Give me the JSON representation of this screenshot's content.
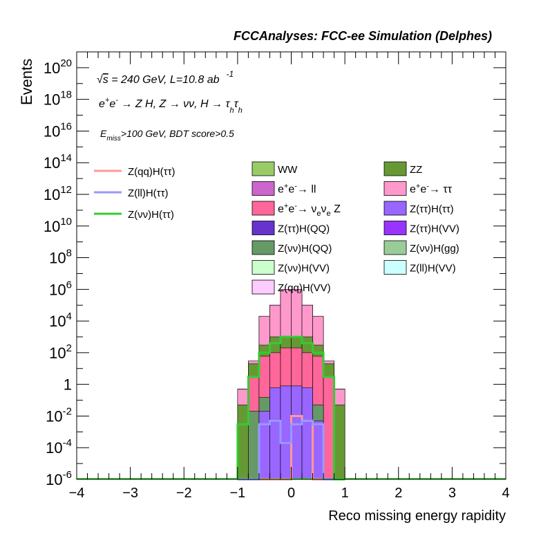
{
  "chart_data": {
    "type": "bar",
    "title": "FCCAnalyses: FCC-ee Simulation (Delphes)",
    "xlabel": "Reco missing energy rapidity",
    "ylabel": "Events",
    "xlim": [
      -4,
      4
    ],
    "ylim_log10": [
      -6,
      21
    ],
    "y_scale": "log",
    "grid": false,
    "legend_placement": "top",
    "annotations": {
      "line1_prefix": "√",
      "line1_s": "s",
      "line1_text": " = 240 GeV, L=10.8 ab",
      "line1_sup": "-1",
      "line2_prefix": "e",
      "line2_sup1": "+",
      "line2_e2": "e",
      "line2_sup2": "-",
      "line2_arrow1": " → Z H, Z  → νν, H  → τ",
      "line2_sub1": "h",
      "line2_tau2": "τ",
      "line2_sub2": "h",
      "line3_E": "E",
      "line3_sub": "miss",
      "line3_text": ">100 GeV, BDT score>0.5"
    },
    "x_ticks": [
      -4,
      -3,
      -2,
      -1,
      0,
      1,
      2,
      3,
      4
    ],
    "x_tick_labels": [
      "−4",
      "−3",
      "−2",
      "−1",
      "0",
      "1",
      "2",
      "3",
      "4"
    ],
    "y_ticks": [
      {
        "exp": 20,
        "base": "10",
        "sup": "20"
      },
      {
        "exp": 18,
        "base": "10",
        "sup": "18"
      },
      {
        "exp": 16,
        "base": "10",
        "sup": "16"
      },
      {
        "exp": 14,
        "base": "10",
        "sup": "14"
      },
      {
        "exp": 12,
        "base": "10",
        "sup": "12"
      },
      {
        "exp": 10,
        "base": "10",
        "sup": "10"
      },
      {
        "exp": 8,
        "base": "10",
        "sup": "8"
      },
      {
        "exp": 6,
        "base": "10",
        "sup": "6"
      },
      {
        "exp": 4,
        "base": "10",
        "sup": "4"
      },
      {
        "exp": 2,
        "base": "10",
        "sup": "2"
      },
      {
        "exp": 0,
        "base": "1",
        "sup": ""
      },
      {
        "exp": -2,
        "base": "10",
        "sup": "-2"
      },
      {
        "exp": -4,
        "base": "10",
        "sup": "-4"
      },
      {
        "exp": -6,
        "base": "10",
        "sup": "-6"
      }
    ],
    "bin_edges": [
      -1.0,
      -0.8,
      -0.6,
      -0.4,
      -0.2,
      0.0,
      0.2,
      0.4,
      0.6,
      0.8,
      1.0
    ],
    "stacked_totals_by_layer": [
      {
        "name": "Z(qq)H(VV)",
        "color": "#ffccff",
        "values": [
          0.5,
          30,
          20000.0,
          100000.0,
          1000000.0,
          1000000.0,
          100000.0,
          20000.0,
          30,
          0.5
        ]
      },
      {
        "name": "ZZ",
        "color": "#669933",
        "values": [
          0.5,
          30,
          10000.0,
          100000.0,
          500000.0,
          500000.0,
          100000.0,
          10000.0,
          30,
          0.5
        ]
      },
      {
        "name": "WW",
        "color": "#99cc66",
        "values": [
          0.5,
          30,
          10000.0,
          100000.0,
          500000.0,
          500000.0,
          100000.0,
          10000.0,
          30,
          0.5
        ]
      },
      {
        "name": "e+e- → ττ",
        "color": "#ff99cc",
        "values": [
          0.5,
          30,
          20000.0,
          100000.0,
          1000000.0,
          1000000.0,
          100000.0,
          20000.0,
          30,
          0.5
        ]
      },
      {
        "name": "ZZ",
        "color": "#669933",
        "values": [
          0.05,
          20,
          300,
          1000,
          1000,
          1000,
          1000,
          300,
          20,
          0.05
        ]
      },
      {
        "name": "e+e- → νeνe Z",
        "color": "#ff6699",
        "values": [
          1e-06,
          3,
          60,
          100,
          200,
          200,
          100,
          60,
          3,
          1e-06
        ]
      },
      {
        "name": "Z(νν)H(QQ)",
        "color": "#669966",
        "values": [
          1e-06,
          0.02,
          0.15,
          0.2,
          0.2,
          0.2,
          0.15,
          0.05,
          1e-06,
          1e-06
        ]
      },
      {
        "name": "Z(ττ)H(ττ)",
        "color": "#9966ff",
        "values": [
          1e-06,
          1e-06,
          0.02,
          0.6,
          0.8,
          0.8,
          0.6,
          0.005,
          1e-06,
          1e-06
        ]
      }
    ],
    "series": [
      {
        "name": "Z(qq)H(ττ)",
        "color": "#ff9999",
        "values": [
          1e-06,
          1e-06,
          1e-06,
          1e-06,
          1e-06,
          0.01,
          0.005,
          1e-06,
          1e-06,
          1e-06
        ]
      },
      {
        "name": "Z(ll)H(ττ)",
        "color": "#9999ff",
        "values": [
          1e-06,
          1e-06,
          0.003,
          0.005,
          0.0002,
          0.003,
          0.005,
          0.003,
          1e-06,
          1e-06
        ]
      },
      {
        "name": "Z(νν)H(ττ)",
        "color": "#33cc33",
        "values": [
          0.003,
          3,
          100,
          400,
          1000,
          1000,
          400,
          100,
          3,
          1e-06
        ]
      }
    ],
    "legend_left": [
      {
        "label": "Z(qq)H(ττ)",
        "color": "#ff9999"
      },
      {
        "label": "Z(ll)H(ττ)",
        "color": "#9999ff"
      },
      {
        "label": "Z(νν)H(ττ)",
        "color": "#33cc33"
      }
    ],
    "legend_mid": [
      {
        "label": "WW",
        "color": "#99cc66"
      },
      {
        "label": "e+e-→ ll",
        "color": "#cc66cc",
        "rich": "eell"
      },
      {
        "label": "e+e-→ νeνe Z",
        "color": "#ff6699",
        "rich": "nunuZ"
      },
      {
        "label": "Z(ττ)H(QQ)",
        "color": "#6633cc"
      },
      {
        "label": "Z(νν)H(QQ)",
        "color": "#669966"
      },
      {
        "label": "Z(νν)H(VV)",
        "color": "#ccffcc"
      },
      {
        "label": "Z(qq)H(VV)",
        "color": "#ffccff"
      }
    ],
    "legend_right": [
      {
        "label": "ZZ",
        "color": "#669933"
      },
      {
        "label": "e+e-→ ττ",
        "color": "#ff99cc",
        "rich": "eetautau"
      },
      {
        "label": "Z(ττ)H(ττ)",
        "color": "#9966ff"
      },
      {
        "label": "Z(ττ)H(VV)",
        "color": "#9933ff"
      },
      {
        "label": "Z(νν)H(gg)",
        "color": "#99cc99"
      },
      {
        "label": "Z(ll)H(VV)",
        "color": "#ccffff"
      }
    ]
  }
}
